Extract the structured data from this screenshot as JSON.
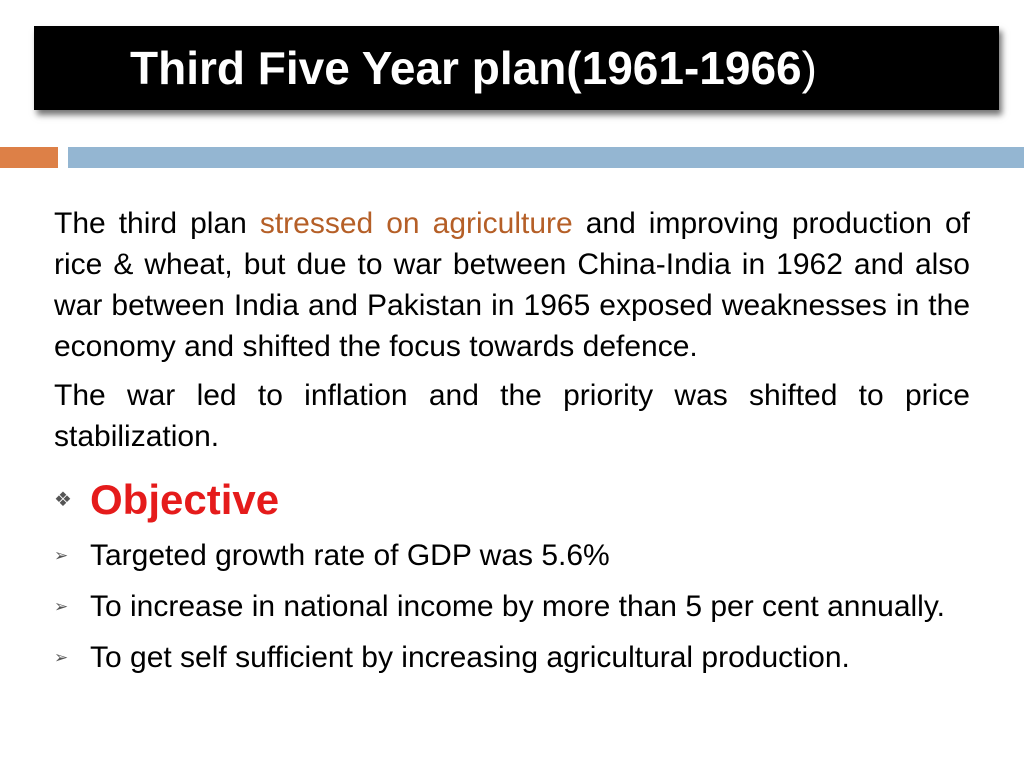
{
  "slide": {
    "title_main": "Third Five Year plan(1961-1966",
    "title_close": ")",
    "paragraph1": {
      "before": "The third plan ",
      "highlight": "stressed on agriculture",
      "after": " and improving production of rice & wheat, but due to war between China-India in 1962 and also war between India and Pakistan in 1965 exposed weaknesses in the economy and shifted the focus towards defence."
    },
    "paragraph2": "The war led to inflation and the priority was shifted to price stabilization.",
    "objective": {
      "bullet": "❖",
      "heading": "Objective"
    },
    "items": [
      {
        "bullet": "➢",
        "text": "Targeted growth rate of  GDP was 5.6%"
      },
      {
        "bullet": "➢",
        "text": "To increase in national income by more than 5 per cent annually."
      },
      {
        "bullet": "➢",
        "text": "To get self sufficient by increasing agricultural production."
      }
    ],
    "colors": {
      "title_bg": "#000000",
      "accent_orange": "#dd8047",
      "accent_blue": "#94b6d2",
      "highlight": "#b55f27",
      "objective": "#e51b1b"
    }
  }
}
